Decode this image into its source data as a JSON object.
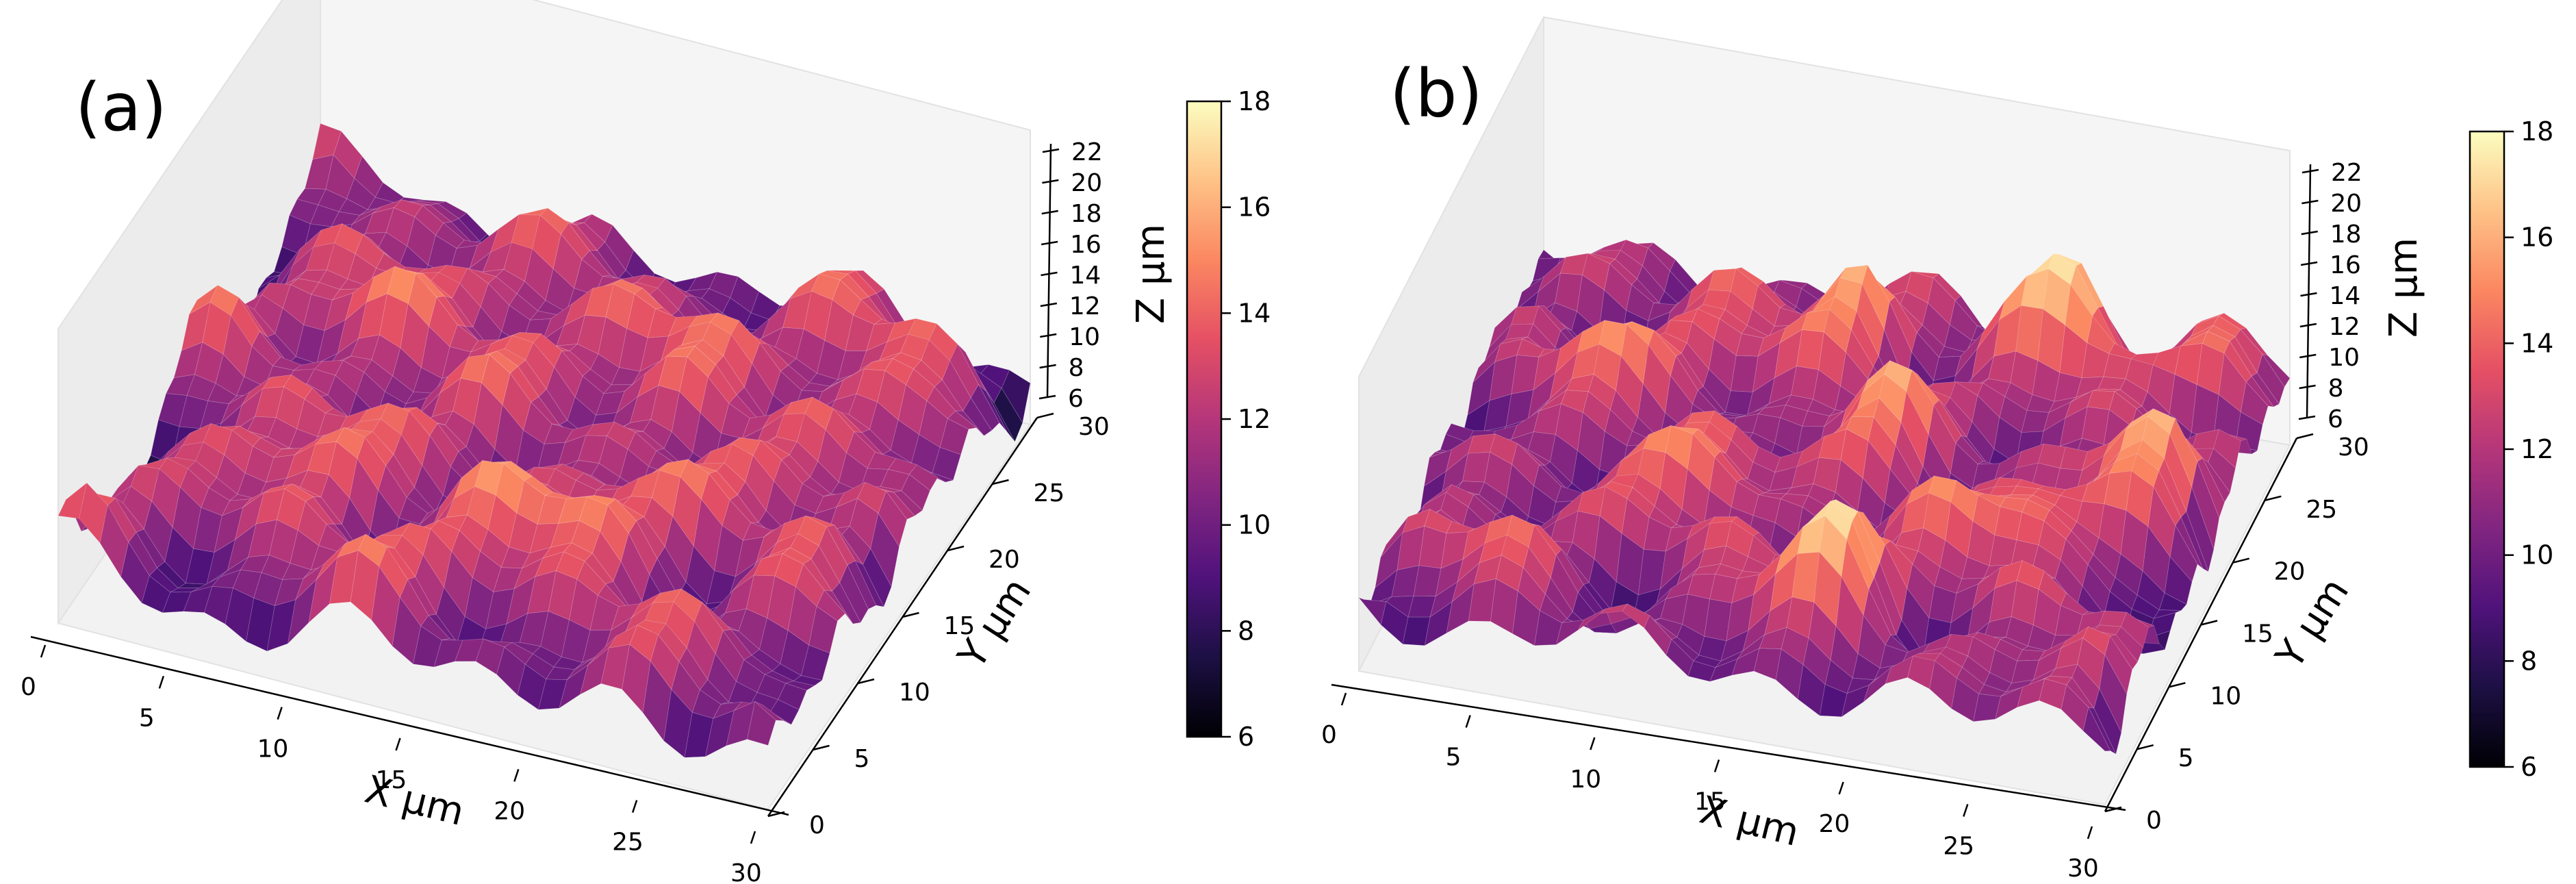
{
  "colormap": {
    "name": "magma",
    "stops": [
      "#000004",
      "#1c1044",
      "#4f127b",
      "#812581",
      "#b5367a",
      "#e55064",
      "#fb8761",
      "#fec287",
      "#fcfdbf"
    ]
  },
  "chart_data": [
    {
      "panel": "(a)",
      "type": "surface3d",
      "xlabel": "X μm",
      "ylabel": "Y μm",
      "zlabel": "Z μm",
      "xlim": [
        0,
        30
      ],
      "ylim": [
        0,
        30
      ],
      "zlim": [
        6,
        22
      ],
      "x_ticks": [
        "0",
        "5",
        "10",
        "15",
        "20",
        "25",
        "30"
      ],
      "y_ticks": [
        "0",
        "5",
        "10",
        "15",
        "20",
        "25",
        "30"
      ],
      "z_ticks": [
        "6",
        "8",
        "10",
        "12",
        "14",
        "16",
        "18",
        "20",
        "22"
      ],
      "colorbar": {
        "range": [
          6,
          18
        ],
        "ticks": [
          "6",
          "8",
          "10",
          "12",
          "14",
          "16",
          "18"
        ]
      },
      "surface_stats": {
        "approx_min": 6,
        "approx_max": 17
      }
    },
    {
      "panel": "(b)",
      "type": "surface3d",
      "xlabel": "X μm",
      "ylabel": "Y μm",
      "zlabel": "Z μm",
      "xlim": [
        0,
        30
      ],
      "ylim": [
        0,
        30
      ],
      "zlim": [
        6,
        22
      ],
      "x_ticks": [
        "0",
        "5",
        "10",
        "15",
        "20",
        "25",
        "30"
      ],
      "y_ticks": [
        "0",
        "5",
        "10",
        "15",
        "20",
        "25",
        "30"
      ],
      "z_ticks": [
        "6",
        "8",
        "10",
        "12",
        "14",
        "16",
        "18",
        "20",
        "22"
      ],
      "colorbar": {
        "range": [
          6,
          18
        ],
        "ticks": [
          "6",
          "8",
          "10",
          "12",
          "14",
          "16",
          "18"
        ]
      },
      "surface_stats": {
        "approx_min": 6,
        "approx_max": 18
      }
    }
  ]
}
